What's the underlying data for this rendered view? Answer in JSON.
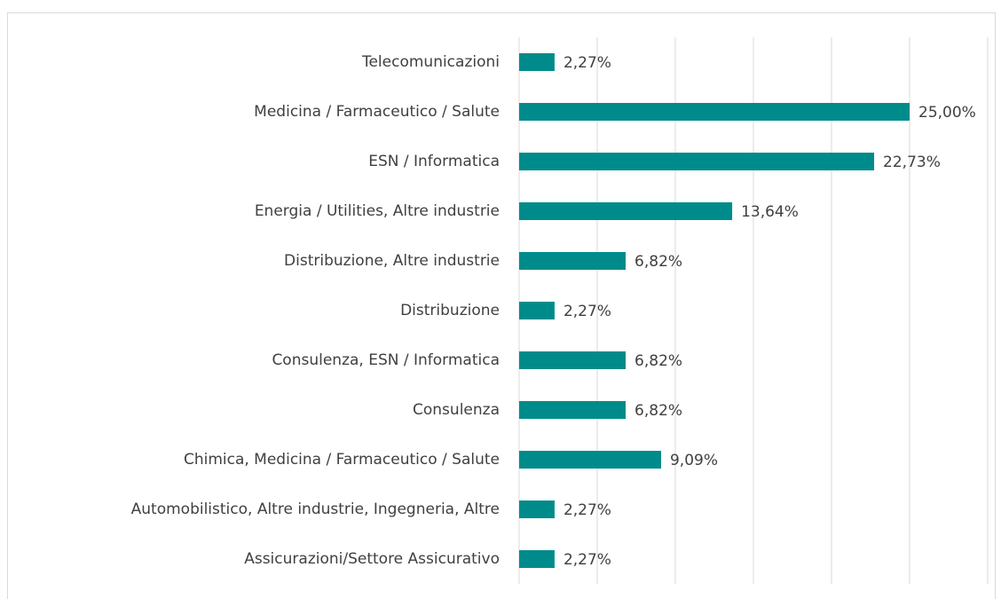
{
  "chart_data": {
    "type": "bar",
    "orientation": "horizontal",
    "categories": [
      "Telecomunicazioni",
      "Medicina / Farmaceutico / Salute",
      "ESN / Informatica",
      "Energia / Utilities, Altre industrie",
      "Distribuzione, Altre industrie",
      "Distribuzione",
      "Consulenza, ESN / Informatica",
      "Consulenza",
      "Chimica, Medicina / Farmaceutico / Salute",
      "Automobilistico, Altre industrie, Ingegneria, Altre",
      "Assicurazioni/Settore Assicurativo"
    ],
    "values": [
      2.27,
      25.0,
      22.73,
      13.64,
      6.82,
      2.27,
      6.82,
      6.82,
      9.09,
      2.27,
      2.27
    ],
    "value_labels": [
      "2,27%",
      "25,00%",
      "22,73%",
      "13,64%",
      "6,82%",
      "2,27%",
      "6,82%",
      "6,82%",
      "9,09%",
      "2,27%",
      "2,27%"
    ],
    "color": "#008b8b",
    "xlim": [
      0,
      30
    ],
    "xticks": [
      0,
      5,
      10,
      15,
      20,
      25,
      30
    ],
    "grid": true
  }
}
